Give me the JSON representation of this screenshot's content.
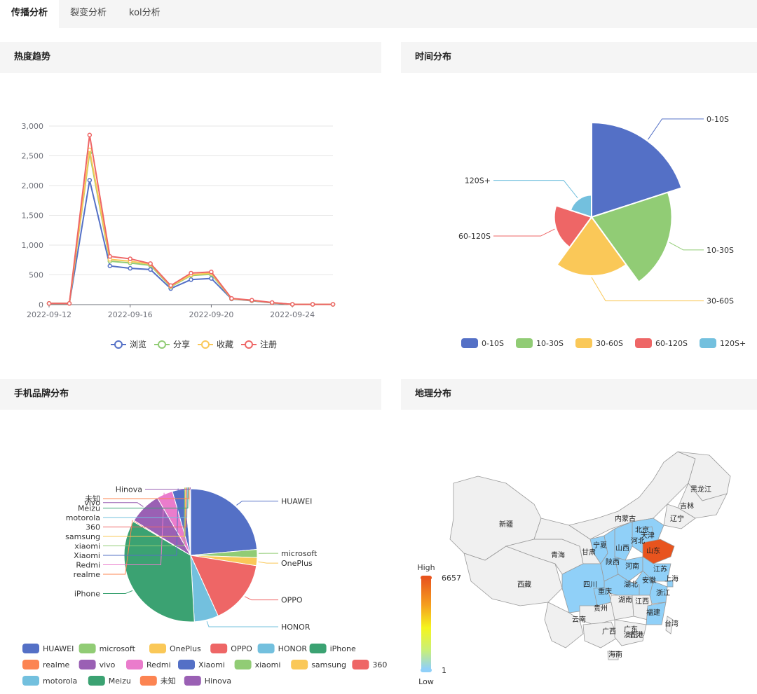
{
  "tabs": [
    {
      "label": "传播分析",
      "active": true
    },
    {
      "label": "裂变分析",
      "active": false
    },
    {
      "label": "kol分析",
      "active": false
    }
  ],
  "panels": {
    "trend": {
      "title": "热度趋势"
    },
    "time": {
      "title": "时间分布"
    },
    "brand": {
      "title": "手机品牌分布"
    },
    "geo": {
      "title": "地理分布"
    }
  },
  "chart_data": [
    {
      "type": "line",
      "x": [
        "2022-09-12",
        "2022-09-13",
        "2022-09-14",
        "2022-09-15",
        "2022-09-16",
        "2022-09-17",
        "2022-09-18",
        "2022-09-19",
        "2022-09-20",
        "2022-09-21",
        "2022-09-22",
        "2022-09-23",
        "2022-09-24",
        "2022-09-25",
        "2022-09-26"
      ],
      "x_ticks": [
        "2022-09-12",
        "2022-09-16",
        "2022-09-20",
        "2022-09-24"
      ],
      "y_ticks": [
        "0",
        "500",
        "1,000",
        "1,500",
        "2,000",
        "2,500",
        "3,000"
      ],
      "ylim": [
        0,
        3000
      ],
      "series": [
        {
          "name": "浏览",
          "color": "#5470c6",
          "values": [
            20,
            20,
            2090,
            650,
            610,
            590,
            270,
            420,
            440,
            95,
            65,
            30,
            5,
            5,
            5
          ]
        },
        {
          "name": "分享",
          "color": "#91cc75",
          "values": [
            20,
            20,
            2550,
            730,
            700,
            660,
            300,
            490,
            510,
            100,
            70,
            32,
            5,
            5,
            5
          ]
        },
        {
          "name": "收藏",
          "color": "#fac858",
          "values": [
            20,
            20,
            2600,
            760,
            730,
            680,
            310,
            500,
            530,
            100,
            70,
            33,
            5,
            5,
            5
          ]
        },
        {
          "name": "注册",
          "color": "#ee6666",
          "values": [
            20,
            20,
            2850,
            810,
            770,
            690,
            320,
            530,
            550,
            105,
            75,
            35,
            5,
            5,
            5
          ]
        }
      ],
      "legend": [
        "浏览",
        "分享",
        "收藏",
        "注册"
      ]
    },
    {
      "type": "pie",
      "subtype": "rose",
      "categories": [
        "0-10S",
        "10-30S",
        "30-60S",
        "60-120S",
        "120S+"
      ],
      "values": [
        100,
        70,
        35,
        12,
        3
      ],
      "colors": [
        "#5470c6",
        "#91cc75",
        "#fac858",
        "#ee6666",
        "#73c0de"
      ],
      "legend": [
        "0-10S",
        "10-30S",
        "30-60S",
        "60-120S",
        "120S+"
      ]
    },
    {
      "type": "pie",
      "categories": [
        "HUAWEI",
        "microsoft",
        "OnePlus",
        "OPPO",
        "HONOR",
        "iPhone",
        "realme",
        "vivo",
        "Redmi",
        "Xiaomi",
        "xiaomi",
        "samsung",
        "360",
        "motorola",
        "Meizu",
        "未知",
        "Hinova"
      ],
      "values": [
        24,
        2,
        2,
        16,
        6,
        35,
        0.3,
        8,
        4,
        3,
        0.2,
        0.2,
        0.2,
        0.2,
        0.2,
        0.3,
        0.2
      ],
      "colors": [
        "#5470c6",
        "#91cc75",
        "#fac858",
        "#ee6666",
        "#73c0de",
        "#3ba272",
        "#fc8452",
        "#9a60b4",
        "#ea7ccc",
        "#5470c6",
        "#91cc75",
        "#fac858",
        "#ee6666",
        "#73c0de",
        "#3ba272",
        "#fc8452",
        "#9a60b4"
      ],
      "legend": [
        "HUAWEI",
        "microsoft",
        "OnePlus",
        "OPPO",
        "HONOR",
        "iPhone",
        "realme",
        "vivo",
        "Redmi",
        "Xiaomi",
        "xiaomi",
        "samsung",
        "360",
        "motorola",
        "Meizu",
        "未知",
        "Hinova"
      ]
    }
  ],
  "geo": {
    "visual_map": {
      "high_label": "High",
      "low_label": "Low",
      "max": "6657",
      "min": "1"
    },
    "provinces": [
      "黑龙江",
      "吉林",
      "辽宁",
      "内蒙古",
      "北京",
      "天津",
      "河北",
      "山西",
      "山东",
      "新疆",
      "宁夏",
      "甘肃",
      "青海",
      "陕西",
      "河南",
      "江苏",
      "上海",
      "安徽",
      "湖北",
      "西藏",
      "四川",
      "重庆",
      "浙江",
      "湖南",
      "江西",
      "贵州",
      "福建",
      "云南",
      "台湾",
      "广西",
      "广东",
      "澳门",
      "香港",
      "海南"
    ],
    "highlight": "山东",
    "colors": {
      "high": "#e8541e",
      "mid": "#90d0f8",
      "none": "#f0f0f0"
    }
  }
}
